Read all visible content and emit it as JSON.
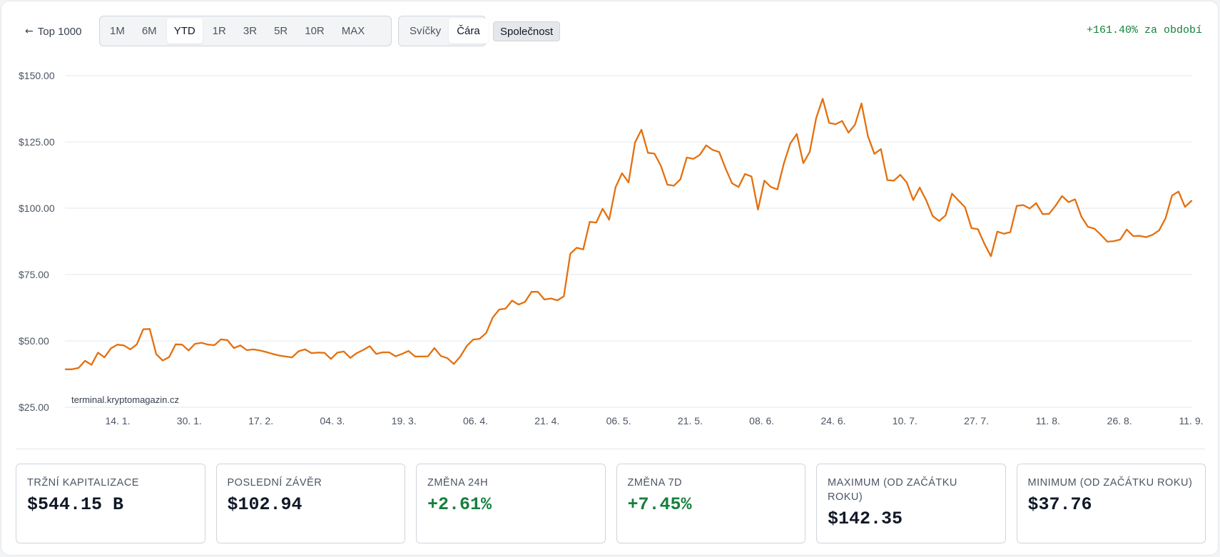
{
  "toolbar": {
    "back_label": "Top 1000",
    "ranges": [
      "1M",
      "6M",
      "YTD",
      "1R",
      "3R",
      "5R",
      "10R",
      "MAX"
    ],
    "active_range": "YTD",
    "chart_types": [
      "Svíčky",
      "Čára"
    ],
    "active_chart_type": "Čára",
    "company_label": "Společnost",
    "period_change": "+161.40% za období"
  },
  "colors": {
    "line": "#e3700f",
    "positive": "#15803d",
    "grid": "#e5e7eb"
  },
  "chart_data": {
    "type": "line",
    "title": "",
    "xlabel": "",
    "ylabel": "",
    "watermark": "terminal.kryptomagazin.cz",
    "ylim": [
      25,
      150
    ],
    "y_ticks": [
      150,
      125,
      100,
      75,
      50,
      25
    ],
    "y_tick_labels": [
      "$150.00",
      "$125.00",
      "$100.00",
      "$75.00",
      "$50.00",
      "$25.00"
    ],
    "x_tick_labels": [
      "14. 1.",
      "30. 1.",
      "17. 2.",
      "04. 3.",
      "19. 3.",
      "06. 4.",
      "21. 4.",
      "06. 5.",
      "21. 5.",
      "08. 6.",
      "24. 6.",
      "10. 7.",
      "27. 7.",
      "11. 8.",
      "26. 8.",
      "11. 9."
    ],
    "grid": true,
    "legend": "none",
    "series": [
      {
        "values": [
          39.3,
          39.3,
          39.8,
          42.5,
          41.0,
          45.6,
          43.8,
          47.2,
          48.6,
          48.3,
          46.8,
          48.7,
          54.4,
          54.5,
          45.0,
          42.6,
          43.9,
          48.7,
          48.6,
          46.4,
          48.9,
          49.3,
          48.6,
          48.4,
          50.6,
          50.3,
          47.3,
          48.3,
          46.5,
          46.8,
          46.4,
          45.8,
          45.1,
          44.5,
          44.1,
          43.8,
          46.1,
          46.8,
          45.4,
          45.6,
          45.5,
          43.2,
          45.6,
          46.0,
          43.6,
          45.4,
          46.6,
          48.0,
          45.1,
          45.7,
          45.7,
          44.2,
          45.1,
          46.2,
          44.1,
          44.1,
          44.2,
          47.3,
          44.3,
          43.5,
          41.3,
          44.1,
          48.1,
          50.5,
          50.8,
          53.0,
          58.8,
          61.8,
          62.2,
          65.2,
          63.7,
          64.7,
          68.5,
          68.5,
          65.6,
          66.0,
          65.3,
          66.8,
          82.9,
          85.1,
          84.5,
          94.9,
          94.6,
          99.8,
          95.7,
          108.0,
          113.2,
          109.7,
          124.8,
          129.6,
          120.9,
          120.6,
          116.0,
          108.9,
          108.5,
          110.9,
          119.1,
          118.6,
          120.1,
          123.7,
          122.0,
          121.2,
          115.0,
          109.4,
          108.0,
          112.9,
          112.0,
          99.5,
          110.4,
          108.0,
          107.1,
          116.9,
          124.4,
          128.0,
          117.0,
          121.2,
          134.0,
          141.3,
          132.2,
          131.7,
          132.9,
          128.5,
          131.5,
          139.5,
          127.1,
          120.5,
          122.3,
          110.6,
          110.4,
          112.6,
          109.7,
          103.1,
          107.8,
          103.0,
          97.1,
          95.2,
          97.3,
          105.5,
          102.9,
          100.4,
          92.5,
          92.1,
          86.6,
          81.9,
          91.2,
          90.4,
          91.0,
          100.9,
          101.2,
          99.9,
          101.9,
          97.8,
          97.9,
          101.0,
          104.6,
          102.3,
          103.4,
          96.8,
          93.0,
          92.3,
          90.0,
          87.4,
          87.6,
          88.2,
          92.0,
          89.5,
          89.6,
          89.1,
          90.0,
          91.7,
          96.2,
          104.8,
          106.3,
          100.5,
          102.8
        ]
      }
    ]
  },
  "stats": [
    {
      "label": "Tržní kapitalizace",
      "value": "$544.15 B",
      "positive": false
    },
    {
      "label": "Poslední závěr",
      "value": "$102.94",
      "positive": false
    },
    {
      "label": "Změna 24H",
      "value": "+2.61%",
      "positive": true
    },
    {
      "label": "Změna 7D",
      "value": "+7.45%",
      "positive": true
    },
    {
      "label": "Maximum (od začátku roku)",
      "value": "$142.35",
      "positive": false
    },
    {
      "label": "Minimum (od začátku roku)",
      "value": "$37.76",
      "positive": false
    }
  ]
}
